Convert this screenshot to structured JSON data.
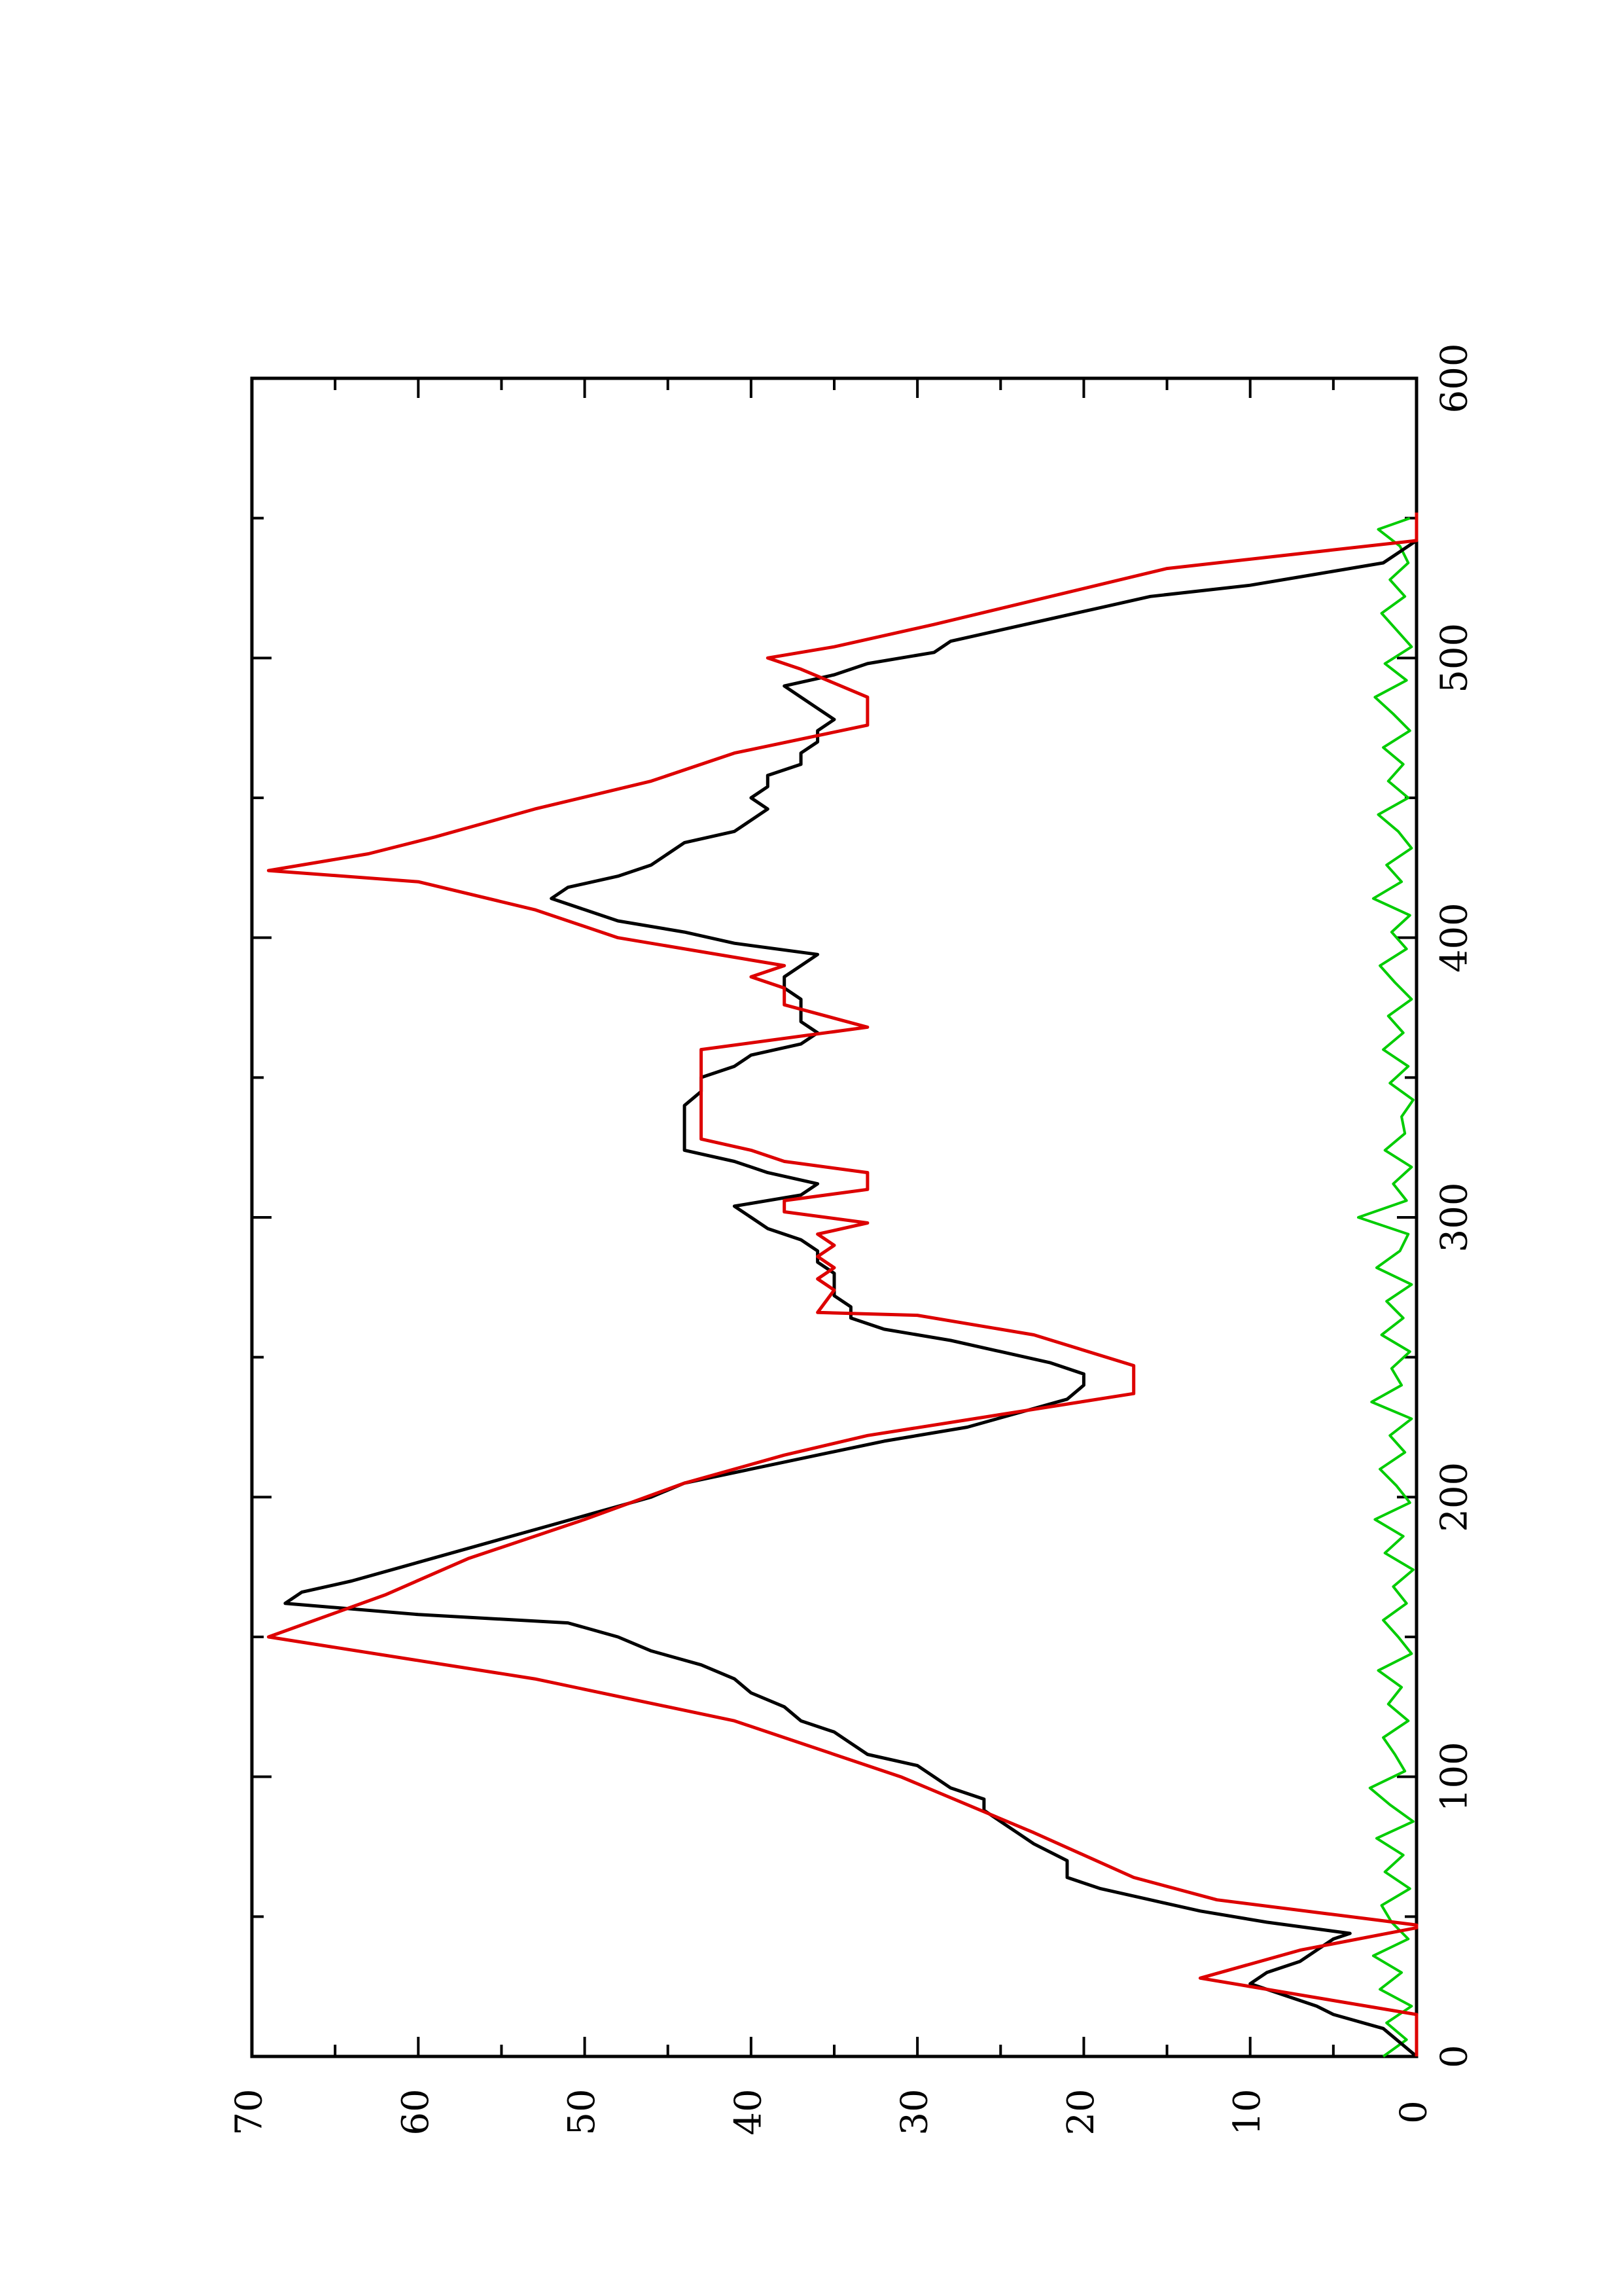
{
  "chart_data": {
    "type": "line",
    "orientation": "rotated-90-clockwise",
    "title": "",
    "xlabel": "",
    "ylabel": "",
    "xlim": [
      0,
      600
    ],
    "ylim": [
      0,
      70
    ],
    "x_ticks": [
      0,
      100,
      200,
      300,
      400,
      500,
      600
    ],
    "x_tick_labels": [
      "0",
      "100",
      "200",
      "300",
      "400",
      "500",
      "600"
    ],
    "x_minor_ticks": [
      50,
      150,
      250,
      350,
      450,
      550
    ],
    "y_ticks": [
      0,
      10,
      20,
      30,
      40,
      50,
      60,
      70
    ],
    "y_tick_labels": [
      "0",
      "10",
      "20",
      "30",
      "40",
      "50",
      "60",
      "70"
    ],
    "y_minor_ticks": [
      5,
      15,
      25,
      35,
      45,
      55,
      65
    ],
    "grid": false,
    "legend": "none",
    "colors": {
      "axis": "#000000",
      "series_black": "#000000",
      "series_red": "#dd0000",
      "series_green": "#00cc00"
    },
    "series": [
      {
        "color": "#000000",
        "x": [
          0,
          5,
          10,
          15,
          18,
          22,
          26,
          30,
          34,
          38,
          42,
          44,
          48,
          52,
          56,
          60,
          64,
          70,
          76,
          80,
          84,
          88,
          92,
          96,
          100,
          104,
          108,
          112,
          116,
          120,
          125,
          130,
          135,
          140,
          145,
          150,
          155,
          158,
          162,
          166,
          170,
          175,
          180,
          185,
          190,
          195,
          200,
          205,
          210,
          215,
          220,
          225,
          230,
          235,
          240,
          244,
          248,
          252,
          256,
          260,
          264,
          268,
          272,
          276,
          280,
          284,
          288,
          292,
          296,
          300,
          304,
          308,
          312,
          316,
          320,
          324,
          328,
          332,
          336,
          340,
          345,
          350,
          354,
          358,
          362,
          366,
          370,
          374,
          378,
          382,
          386,
          390,
          394,
          398,
          402,
          406,
          410,
          414,
          418,
          422,
          426,
          430,
          434,
          438,
          442,
          446,
          450,
          454,
          458,
          462,
          466,
          470,
          474,
          478,
          482,
          486,
          490,
          494,
          498,
          502,
          506,
          510,
          514,
          518,
          522,
          526,
          530,
          534,
          538,
          542,
          546,
          550
        ],
        "y": [
          0,
          1,
          2,
          5,
          6,
          8,
          10,
          9,
          7,
          6,
          5,
          4,
          9,
          13,
          16,
          19,
          21,
          21,
          23,
          24,
          25,
          26,
          26,
          28,
          29,
          30,
          33,
          34,
          35,
          37,
          38,
          40,
          41,
          43,
          46,
          48,
          51,
          60,
          68,
          67,
          64,
          61,
          58,
          55,
          52,
          49,
          46,
          44,
          40,
          36,
          32,
          27,
          24,
          21,
          20,
          20,
          22,
          25,
          28,
          32,
          34,
          34,
          35,
          35,
          35,
          36,
          36,
          37,
          39,
          40,
          41,
          37,
          36,
          39,
          41,
          44,
          44,
          44,
          44,
          44,
          43,
          43,
          41,
          40,
          37,
          36,
          37,
          37,
          37,
          38,
          38,
          37,
          36,
          41,
          44,
          48,
          50,
          52,
          51,
          48,
          46,
          45,
          44,
          41,
          40,
          39,
          40,
          39,
          39,
          37,
          37,
          36,
          36,
          35,
          36,
          37,
          38,
          35,
          33,
          29,
          28,
          25,
          22,
          19,
          16,
          10,
          6,
          2,
          1,
          0,
          0,
          0
        ]
      },
      {
        "color": "#dd0000",
        "x": [
          0,
          15,
          28,
          38,
          46,
          47,
          56,
          64,
          80,
          100,
          120,
          135,
          150,
          165,
          178,
          192,
          205,
          215,
          222,
          237,
          247,
          258,
          265,
          266,
          274,
          278,
          282,
          286,
          290,
          294,
          298,
          302,
          306,
          310,
          316,
          320,
          324,
          328,
          332,
          336,
          340,
          348,
          360,
          368,
          376,
          382,
          386,
          390,
          400,
          410,
          420,
          424,
          430,
          436,
          446,
          456,
          466,
          476,
          486,
          496,
          500,
          504,
          512,
          522,
          532,
          542,
          552
        ],
        "y": [
          0,
          0,
          13,
          7,
          0,
          0,
          12,
          17,
          23,
          31,
          41,
          53,
          69,
          62,
          57,
          50,
          44,
          38,
          33,
          17,
          17,
          23,
          30,
          36,
          35,
          36,
          35,
          36,
          35,
          36,
          33,
          38,
          38,
          33,
          33,
          38,
          40,
          43,
          43,
          43,
          43,
          43,
          43,
          33,
          38,
          38,
          40,
          38,
          48,
          53,
          60,
          69,
          63,
          59,
          53,
          46,
          41,
          33,
          33,
          37,
          39,
          35,
          29,
          22,
          15,
          0,
          0
        ]
      },
      {
        "color": "#00cc00",
        "x": [
          0,
          6,
          12,
          18,
          24,
          30,
          36,
          42,
          48,
          54,
          60,
          66,
          72,
          78,
          84,
          90,
          96,
          102,
          108,
          114,
          120,
          126,
          132,
          138,
          144,
          150,
          156,
          162,
          168,
          174,
          180,
          186,
          192,
          198,
          204,
          210,
          216,
          222,
          228,
          234,
          240,
          246,
          252,
          258,
          264,
          270,
          276,
          282,
          288,
          294,
          300,
          306,
          312,
          318,
          324,
          330,
          336,
          342,
          348,
          354,
          360,
          366,
          372,
          378,
          384,
          390,
          396,
          402,
          408,
          414,
          420,
          426,
          432,
          438,
          444,
          450,
          456,
          462,
          468,
          474,
          480,
          486,
          492,
          498,
          504,
          510,
          516,
          522,
          528,
          534,
          540,
          546,
          550
        ],
        "y": [
          2.0,
          0.6,
          1.8,
          0.3,
          2.2,
          0.9,
          2.6,
          0.5,
          1.5,
          2.1,
          0.4,
          1.9,
          0.8,
          2.4,
          0.2,
          1.6,
          2.8,
          0.7,
          1.3,
          2.0,
          0.5,
          1.7,
          0.9,
          2.3,
          0.3,
          1.1,
          2.0,
          0.6,
          1.4,
          0.2,
          1.9,
          0.8,
          2.5,
          0.4,
          1.2,
          2.2,
          0.7,
          1.6,
          0.3,
          2.7,
          0.9,
          1.5,
          0.4,
          2.1,
          0.8,
          1.8,
          0.3,
          2.4,
          1.0,
          0.5,
          3.5,
          0.6,
          1.4,
          0.3,
          1.9,
          0.7,
          0.9,
          0.2,
          1.6,
          0.5,
          2.0,
          0.8,
          1.7,
          0.3,
          1.3,
          2.2,
          0.6,
          1.5,
          0.4,
          2.6,
          0.9,
          1.8,
          0.3,
          1.1,
          2.3,
          0.5,
          1.7,
          0.8,
          2.0,
          0.4,
          1.4,
          2.5,
          0.6,
          1.9,
          0.3,
          1.2,
          2.1,
          0.7,
          1.6,
          0.5,
          1.0,
          2.3,
          0.4
        ]
      }
    ]
  }
}
